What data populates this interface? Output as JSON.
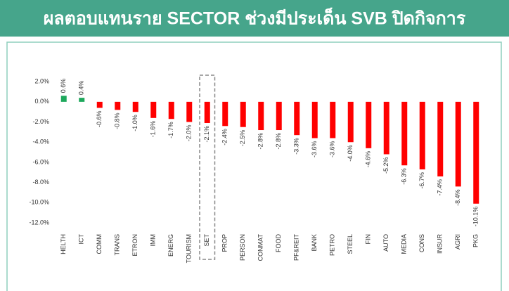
{
  "chart_data": {
    "type": "bar",
    "title": "ผลตอบแทนราย SECTOR ช่วงมีประเด็น SVB ปิดกิจการ",
    "categories": [
      "HELTH",
      "ICT",
      "COMM",
      "TRANS",
      "ETRON",
      "IMM",
      "ENERG",
      "TOURISM",
      "SET",
      "PROP",
      "PERSON",
      "CONMAT",
      "FOOD",
      "PF&REIT",
      "BANK",
      "PETRO",
      "STEEL",
      "FIN",
      "AUTO",
      "MEDIA",
      "CONS",
      "INSUR",
      "AGRI",
      "PKG"
    ],
    "values": [
      0.6,
      0.4,
      -0.6,
      -0.8,
      -1.0,
      -1.6,
      -1.7,
      -2.0,
      -2.1,
      -2.4,
      -2.5,
      -2.8,
      -2.8,
      -3.3,
      -3.6,
      -3.6,
      -4.0,
      -4.6,
      -5.2,
      -6.3,
      -6.7,
      -7.4,
      -8.4,
      -10.1
    ],
    "value_labels": [
      "0.6%",
      "0.4%",
      "-0.6%",
      "-0.8%",
      "-1.0%",
      "-1.6%",
      "-1.7%",
      "-2.0%",
      "-2.1%",
      "-2.4%",
      "-2.5%",
      "-2.8%",
      "-2.8%",
      "-3.3%",
      "-3.6%",
      "-3.6%",
      "-4.0%",
      "-4.6%",
      "-5.2%",
      "-6.3%",
      "-6.7%",
      "-7.4%",
      "-8.4%",
      "-10.1%"
    ],
    "color_positive": "#1ea85c",
    "color_negative": "#ff0000",
    "highlight_index": 8,
    "ylim": [
      -12,
      2.5
    ],
    "yticks": [
      {
        "value": 2,
        "label": "2.0%"
      },
      {
        "value": 0,
        "label": "0.0%"
      },
      {
        "value": -2,
        "label": "-2.0%"
      },
      {
        "value": -4,
        "label": "-4.0%"
      },
      {
        "value": -6,
        "label": "-6.0%"
      },
      {
        "value": -8,
        "label": "-8.0%"
      },
      {
        "value": -10,
        "label": "-10.0%"
      },
      {
        "value": -12,
        "label": "-12.0%"
      }
    ],
    "grid": false
  }
}
